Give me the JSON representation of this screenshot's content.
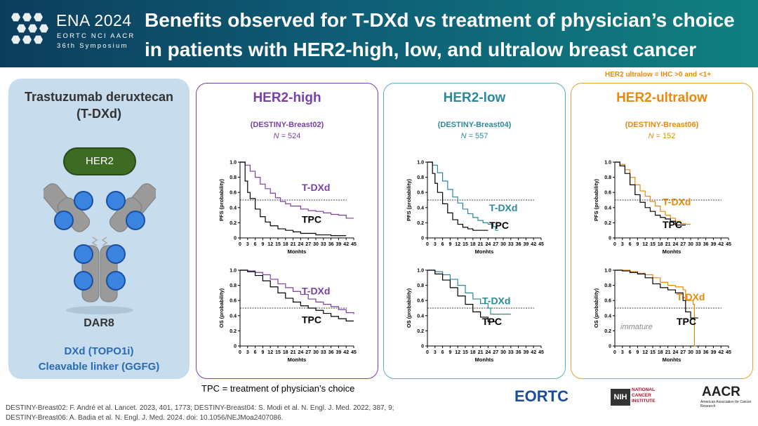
{
  "header": {
    "logo_title": "ENA 2024",
    "logo_line2": "EORTC NCI AACR",
    "logo_line3": "36th Symposium",
    "title_line1": "Benefits observed for T-DXd vs treatment of physician’s choice",
    "title_line2": "in patients with HER2-high, low, and ultralow breast cancer"
  },
  "ultralow_definition": "HER2 ultralow = IHC >0 and <1+",
  "left_panel": {
    "drug_line1": "Trastuzumab deruxtecan",
    "drug_line2": "(T-DXd)",
    "her2_label": "HER2",
    "dar_label": "DAR8",
    "payload_line1": "DXd (TOPO1i)",
    "payload_line2": "Cleavable linker (GGFG)"
  },
  "colors": {
    "high": "#7b3fa8",
    "low": "#2a8a99",
    "ultralow": "#e8890c",
    "tpc": "#000000"
  },
  "panels": [
    {
      "title": "HER2-high",
      "trial": "(DESTINY-Breast02)",
      "n_prefix": "N",
      "n_value": "= 524",
      "color": "#7b3fa8",
      "border": "#7b3fa8"
    },
    {
      "title": "HER2-low",
      "trial": "(DESTINY-Breast04)",
      "n_prefix": "N",
      "n_value": "= 557",
      "color": "#2a8a99",
      "border": "#5ab0c0"
    },
    {
      "title": "HER2-ultralow",
      "trial": "(DESTINY-Breast06)",
      "n_prefix": "N",
      "n_value": "= 152",
      "color": "#e8890c",
      "border": "#e8a030"
    }
  ],
  "chart_data": [
    {
      "type": "line",
      "panel": 0,
      "ylabel": "PFS (probability)",
      "xlabel": "Monhts",
      "xlim": [
        0,
        45
      ],
      "ylim": [
        0,
        1
      ],
      "reference_line": 0.5,
      "xticks": [
        "0",
        "3",
        "6",
        "9",
        "12",
        "15",
        "18",
        "21",
        "24",
        "27",
        "30",
        "33",
        "36",
        "39",
        "42",
        "45"
      ],
      "yticks": [
        "0",
        "0.2",
        "0.4",
        "0.6",
        "0.8",
        "1.0"
      ],
      "series": [
        {
          "name": "T-DXd",
          "color_key": "high",
          "x": [
            0,
            2,
            4,
            6,
            8,
            10,
            12,
            14,
            16,
            18,
            20,
            24,
            27,
            30,
            33,
            36,
            39,
            42,
            45
          ],
          "y": [
            1.0,
            0.96,
            0.88,
            0.8,
            0.71,
            0.65,
            0.59,
            0.53,
            0.48,
            0.45,
            0.42,
            0.38,
            0.36,
            0.35,
            0.33,
            0.31,
            0.3,
            0.26,
            0.26
          ]
        },
        {
          "name": "TPC",
          "color_key": "tpc",
          "x": [
            0,
            2,
            3,
            4,
            6,
            8,
            10,
            12,
            15,
            18,
            21,
            24,
            30,
            36,
            42
          ],
          "y": [
            1.0,
            0.75,
            0.6,
            0.52,
            0.38,
            0.28,
            0.21,
            0.16,
            0.12,
            0.1,
            0.08,
            0.06,
            0.04,
            0.03,
            0.03
          ]
        }
      ]
    },
    {
      "type": "line",
      "panel": 0,
      "ylabel": "OS (probability)",
      "xlabel": "Monhts",
      "xlim": [
        0,
        45
      ],
      "ylim": [
        0,
        1
      ],
      "reference_line": 0.5,
      "xticks": [
        "0",
        "3",
        "6",
        "9",
        "12",
        "15",
        "18",
        "21",
        "24",
        "27",
        "30",
        "33",
        "36",
        "39",
        "42",
        "45"
      ],
      "yticks": [
        "0",
        "0.2",
        "0.4",
        "0.6",
        "0.8",
        "1.0"
      ],
      "series": [
        {
          "name": "T-DXd",
          "color_key": "high",
          "x": [
            0,
            3,
            6,
            9,
            12,
            15,
            18,
            21,
            24,
            27,
            30,
            33,
            36,
            39,
            42,
            45
          ],
          "y": [
            1.0,
            0.99,
            0.97,
            0.94,
            0.88,
            0.82,
            0.77,
            0.72,
            0.68,
            0.62,
            0.58,
            0.55,
            0.52,
            0.48,
            0.44,
            0.42
          ]
        },
        {
          "name": "TPC",
          "color_key": "tpc",
          "x": [
            0,
            3,
            6,
            9,
            12,
            15,
            18,
            21,
            24,
            27,
            30,
            33,
            36,
            39,
            42,
            45
          ],
          "y": [
            1.0,
            0.98,
            0.93,
            0.86,
            0.78,
            0.7,
            0.63,
            0.58,
            0.53,
            0.5,
            0.47,
            0.43,
            0.39,
            0.36,
            0.33,
            0.33
          ]
        }
      ]
    },
    {
      "type": "line",
      "panel": 1,
      "ylabel": "PFS (probability)",
      "xlabel": "Monhts",
      "xlim": [
        0,
        45
      ],
      "ylim": [
        0,
        1
      ],
      "reference_line": 0.5,
      "xticks": [
        "0",
        "3",
        "6",
        "9",
        "12",
        "15",
        "18",
        "21",
        "24",
        "27",
        "30",
        "33",
        "36",
        "39",
        "42",
        "45"
      ],
      "yticks": [
        "0",
        "0.2",
        "0.4",
        "0.6",
        "0.8",
        "1.0"
      ],
      "series": [
        {
          "name": "T-DXd",
          "color_key": "low",
          "x": [
            0,
            2,
            4,
            6,
            8,
            10,
            12,
            14,
            16,
            18,
            20,
            22,
            24,
            26,
            27,
            28
          ],
          "y": [
            1.0,
            0.96,
            0.86,
            0.75,
            0.64,
            0.54,
            0.46,
            0.38,
            0.32,
            0.27,
            0.23,
            0.2,
            0.18,
            0.15,
            0.1,
            0.1
          ]
        },
        {
          "name": "TPC",
          "color_key": "tpc",
          "x": [
            0,
            2,
            3,
            4,
            6,
            8,
            10,
            12,
            14,
            16,
            18,
            21,
            24
          ],
          "y": [
            1.0,
            0.85,
            0.72,
            0.6,
            0.45,
            0.33,
            0.24,
            0.18,
            0.14,
            0.12,
            0.1,
            0.1,
            0.1
          ]
        }
      ]
    },
    {
      "type": "line",
      "panel": 1,
      "ylabel": "OS (probability)",
      "xlabel": "Monhts",
      "xlim": [
        0,
        45
      ],
      "ylim": [
        0,
        1
      ],
      "reference_line": 0.5,
      "xticks": [
        "0",
        "3",
        "6",
        "9",
        "12",
        "15",
        "18",
        "21",
        "24",
        "27",
        "30",
        "33",
        "36",
        "39",
        "42",
        "45"
      ],
      "yticks": [
        "0",
        "0.2",
        "0.4",
        "0.6",
        "0.8",
        "1.0"
      ],
      "series": [
        {
          "name": "T-DXd",
          "color_key": "low",
          "x": [
            0,
            3,
            6,
            9,
            12,
            15,
            18,
            21,
            24,
            25,
            27,
            30,
            33
          ],
          "y": [
            1.0,
            0.98,
            0.94,
            0.88,
            0.8,
            0.7,
            0.62,
            0.56,
            0.5,
            0.42,
            0.42,
            0.42,
            0.42
          ]
        },
        {
          "name": "TPC",
          "color_key": "tpc",
          "x": [
            0,
            3,
            6,
            9,
            12,
            15,
            18,
            21,
            24,
            27
          ],
          "y": [
            1.0,
            0.95,
            0.87,
            0.77,
            0.66,
            0.55,
            0.45,
            0.38,
            0.32,
            0.32
          ]
        }
      ]
    },
    {
      "type": "line",
      "panel": 2,
      "ylabel": "PFS (probability)",
      "xlabel": "Monhts",
      "xlim": [
        0,
        45
      ],
      "ylim": [
        0,
        1
      ],
      "reference_line": 0.5,
      "xticks": [
        "0",
        "3",
        "6",
        "9",
        "12",
        "15",
        "18",
        "21",
        "24",
        "27",
        "30",
        "33",
        "36",
        "39",
        "42",
        "45"
      ],
      "yticks": [
        "0",
        "0.2",
        "0.4",
        "0.6",
        "0.8",
        "1.0"
      ],
      "series": [
        {
          "name": "T-DXd",
          "color_key": "ultralow",
          "x": [
            0,
            2,
            4,
            6,
            8,
            10,
            12,
            14,
            16,
            18,
            20,
            22,
            24,
            26,
            28,
            30
          ],
          "y": [
            1.0,
            0.97,
            0.9,
            0.8,
            0.7,
            0.62,
            0.55,
            0.48,
            0.42,
            0.35,
            0.3,
            0.26,
            0.22,
            0.19,
            0.18,
            0.18
          ]
        },
        {
          "name": "TPC",
          "color_key": "tpc",
          "x": [
            0,
            2,
            4,
            6,
            8,
            10,
            12,
            14,
            16,
            18,
            20,
            22,
            24,
            26,
            28
          ],
          "y": [
            1.0,
            0.95,
            0.85,
            0.7,
            0.57,
            0.47,
            0.4,
            0.35,
            0.3,
            0.27,
            0.25,
            0.22,
            0.17,
            0.17,
            0.17
          ]
        }
      ]
    },
    {
      "type": "line",
      "panel": 2,
      "ylabel": "OS (probability)",
      "xlabel": "Monhts",
      "xlim": [
        0,
        45
      ],
      "ylim": [
        0,
        1
      ],
      "reference_line": 0.5,
      "xticks": [
        "0",
        "3",
        "6",
        "9",
        "12",
        "15",
        "18",
        "21",
        "24",
        "27",
        "30",
        "33",
        "36",
        "39",
        "42",
        "45"
      ],
      "yticks": [
        "0",
        "0.2",
        "0.4",
        "0.6",
        "0.8",
        "1.0"
      ],
      "annotation": "immature",
      "series": [
        {
          "name": "T-DXd",
          "color_key": "ultralow",
          "x": [
            0,
            3,
            6,
            9,
            12,
            15,
            18,
            21,
            24,
            27,
            28,
            30,
            31,
            31.5,
            32
          ],
          "y": [
            1.0,
            1.0,
            0.98,
            0.96,
            0.94,
            0.9,
            0.84,
            0.8,
            0.78,
            0.74,
            0.6,
            0.6,
            0.55,
            0.0,
            0.0
          ]
        },
        {
          "name": "TPC",
          "color_key": "tpc",
          "x": [
            0,
            3,
            6,
            9,
            12,
            15,
            18,
            21,
            24,
            27,
            28,
            30,
            33
          ],
          "y": [
            1.0,
            0.99,
            0.97,
            0.95,
            0.9,
            0.82,
            0.77,
            0.74,
            0.7,
            0.6,
            0.45,
            0.37,
            0.37
          ]
        }
      ]
    }
  ],
  "footer": {
    "tpc_note": "TPC = treatment of physician’s choice",
    "ref_line1": "DESTINY-Breast02: F. André et al. Lancet. 2023, 401, 1773; DESTINY-Breast04: S. Modi et al. N. Engl. J. Med. 2022, 387, 9;",
    "ref_line2": "DESTINY-Breast06: A. Badia et al. N. Engl. J. Med. 2024. doi: 10.1056/NEJMoa2407086.",
    "eortc": "EORTC",
    "nih": "NIH",
    "nci": "NATIONAL CANCER INSTITUTE",
    "aacr": "AACR",
    "aacr_sub": "American Association for Cancer Research"
  }
}
